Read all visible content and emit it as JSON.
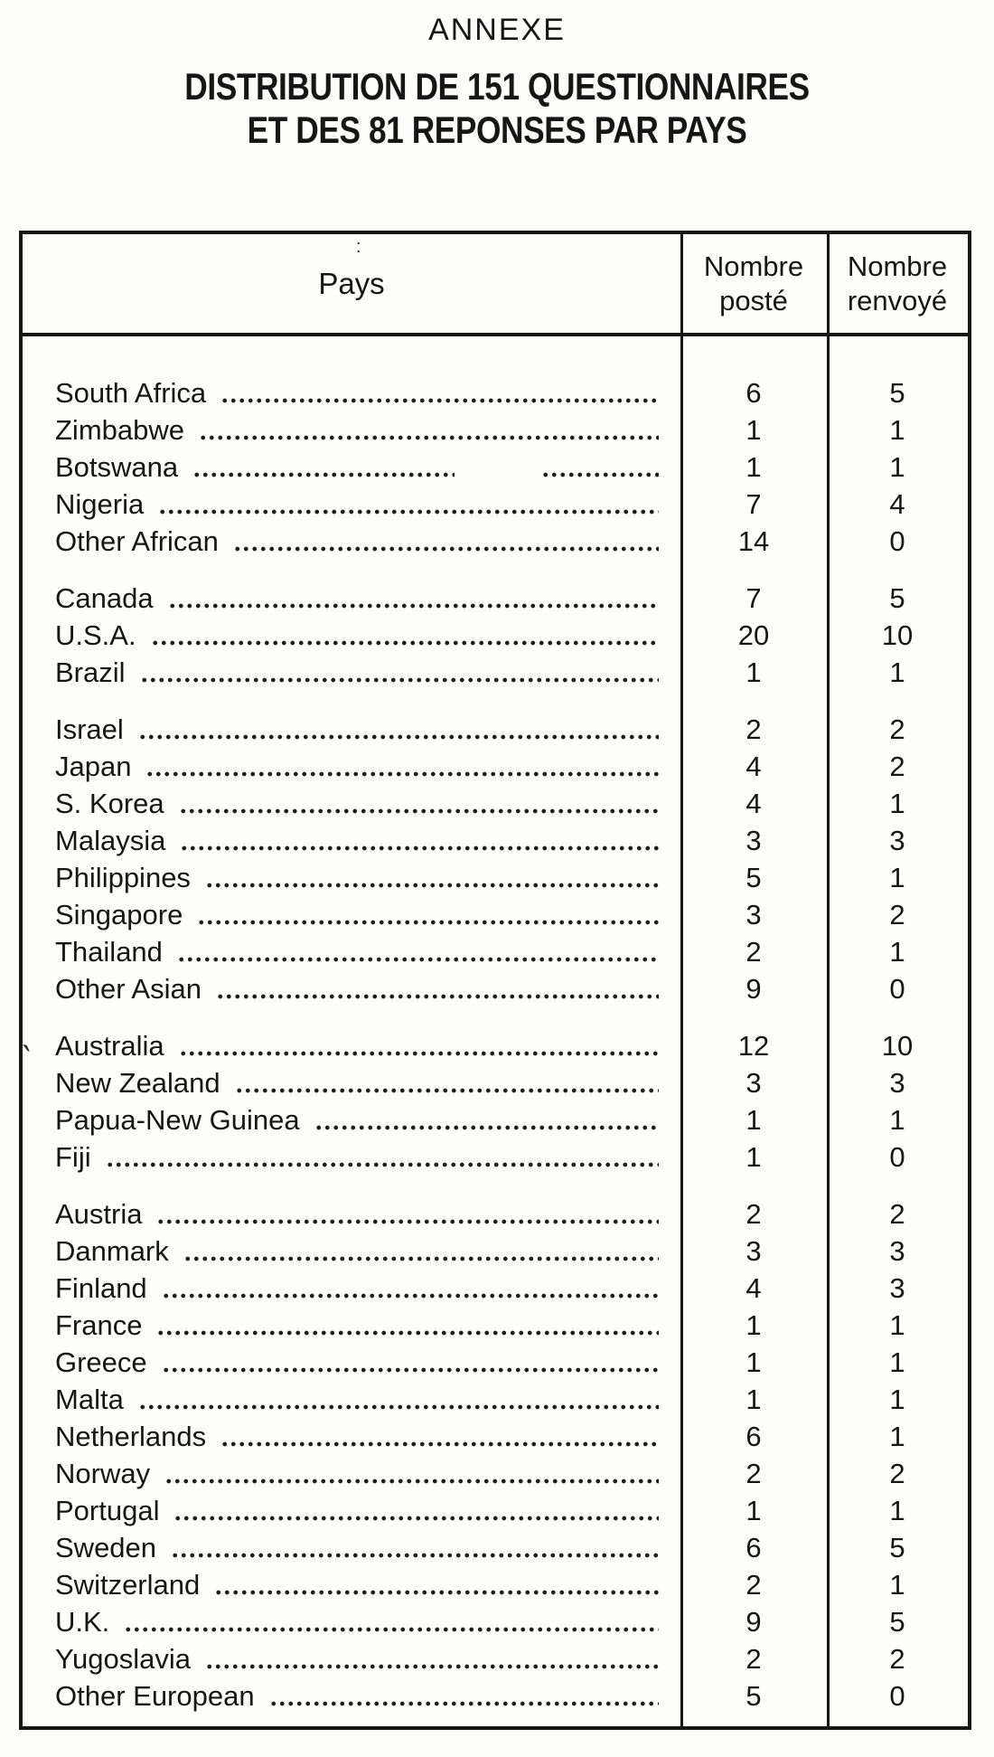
{
  "page": {
    "kicker": "ANNEXE",
    "title_line1": "DISTRIBUTION DE 151 QUESTIONNAIRES",
    "title_line2": "ET DES 81 REPONSES PAR PAYS"
  },
  "table": {
    "headers": {
      "country": "Pays",
      "posted": "Nombre posté",
      "returned": "Nombre renvoyé"
    },
    "groups": [
      {
        "rows": [
          {
            "name": "South Africa",
            "posted": 6,
            "returned": 5
          },
          {
            "name": "Zimbabwe",
            "posted": 1,
            "returned": 1
          },
          {
            "name": "Botswana",
            "posted": 1,
            "returned": 1,
            "leader_split": true
          },
          {
            "name": "Nigeria",
            "posted": 7,
            "returned": 4
          },
          {
            "name": "Other African",
            "posted": 14,
            "returned": 0
          }
        ]
      },
      {
        "rows": [
          {
            "name": "Canada",
            "posted": 7,
            "returned": 5
          },
          {
            "name": "U.S.A.",
            "posted": 20,
            "returned": 10
          },
          {
            "name": "Brazil",
            "posted": 1,
            "returned": 1
          }
        ]
      },
      {
        "rows": [
          {
            "name": "Israel",
            "posted": 2,
            "returned": 2
          },
          {
            "name": "Japan",
            "posted": 4,
            "returned": 2
          },
          {
            "name": "S. Korea",
            "posted": 4,
            "returned": 1
          },
          {
            "name": "Malaysia",
            "posted": 3,
            "returned": 3
          },
          {
            "name": "Philippines",
            "posted": 5,
            "returned": 1
          },
          {
            "name": "Singapore",
            "posted": 3,
            "returned": 2
          },
          {
            "name": "Thailand",
            "posted": 2,
            "returned": 1
          },
          {
            "name": "Other Asian",
            "posted": 9,
            "returned": 0
          }
        ]
      },
      {
        "rows": [
          {
            "name": "Australia",
            "posted": 12,
            "returned": 10
          },
          {
            "name": "New Zealand",
            "posted": 3,
            "returned": 3
          },
          {
            "name": "Papua-New Guinea",
            "posted": 1,
            "returned": 1
          },
          {
            "name": "Fiji",
            "posted": 1,
            "returned": 0
          }
        ]
      },
      {
        "rows": [
          {
            "name": "Austria",
            "posted": 2,
            "returned": 2
          },
          {
            "name": "Danmark",
            "posted": 3,
            "returned": 3
          },
          {
            "name": "Finland",
            "posted": 4,
            "returned": 3
          },
          {
            "name": "France",
            "posted": 1,
            "returned": 1
          },
          {
            "name": "Greece",
            "posted": 1,
            "returned": 1
          },
          {
            "name": "Malta",
            "posted": 1,
            "returned": 1
          },
          {
            "name": "Netherlands",
            "posted": 6,
            "returned": 1
          },
          {
            "name": "Norway",
            "posted": 2,
            "returned": 2
          },
          {
            "name": "Portugal",
            "posted": 1,
            "returned": 1
          },
          {
            "name": "Sweden",
            "posted": 6,
            "returned": 5
          },
          {
            "name": "Switzerland",
            "posted": 2,
            "returned": 1
          },
          {
            "name": "U.K.",
            "posted": 9,
            "returned": 5
          },
          {
            "name": "Yugoslavia",
            "posted": 2,
            "returned": 2
          },
          {
            "name": "Other European",
            "posted": 5,
            "returned": 0
          }
        ]
      }
    ]
  },
  "artifacts": {
    "pays_mark": ":",
    "margin_mark": "`"
  }
}
